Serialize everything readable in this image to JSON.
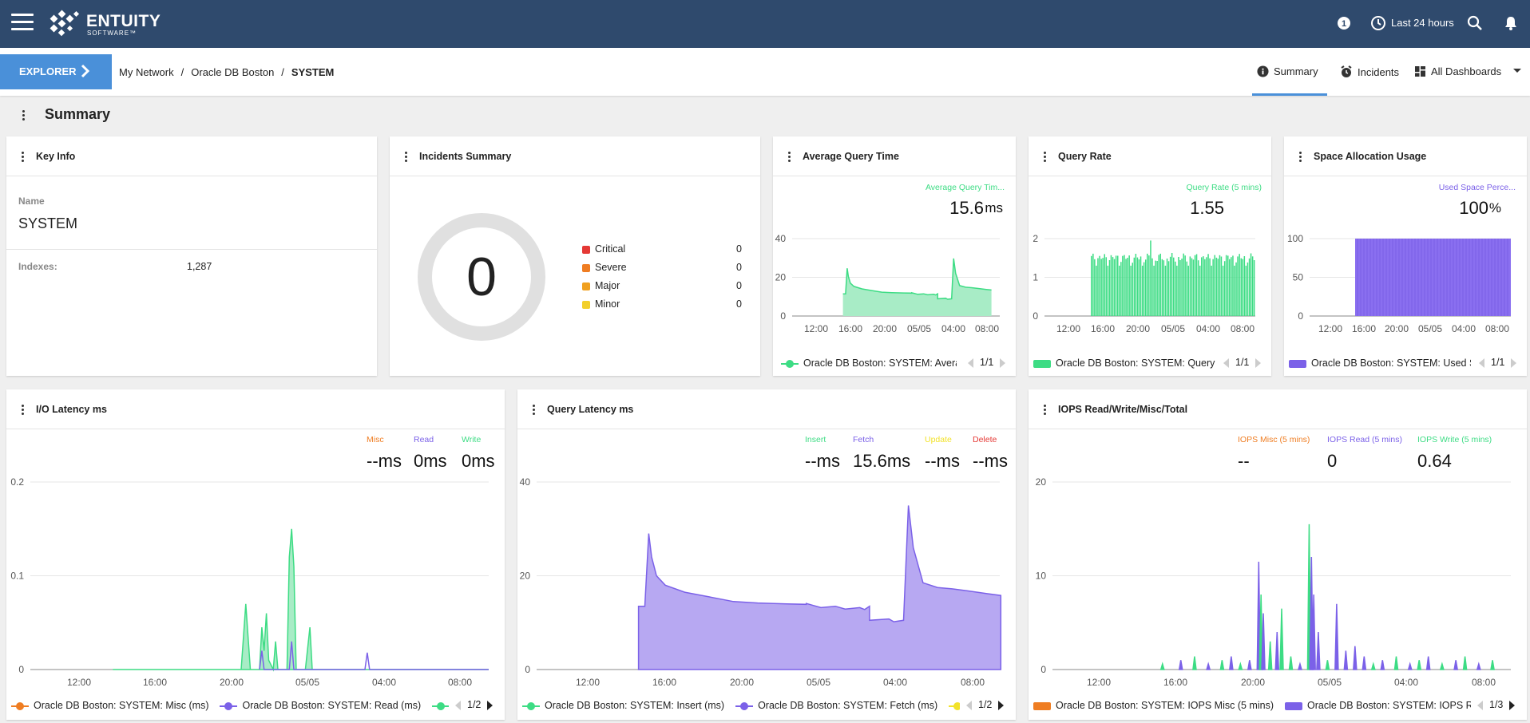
{
  "app": {
    "brand": "ENTUITY",
    "brand_sub": "SOFTWARE™",
    "time_range": "Last 24 hours"
  },
  "nav": {
    "explorer_label": "EXPLORER",
    "breadcrumb": [
      "My Network",
      "Oracle DB Boston",
      "SYSTEM"
    ],
    "tabs": [
      {
        "label": "Summary",
        "active": true
      },
      {
        "label": "Incidents"
      },
      {
        "label": "All Dashboards"
      }
    ]
  },
  "page": {
    "title": "Summary"
  },
  "key_info": {
    "title": "Key Info",
    "name_label": "Name",
    "name_value": "SYSTEM",
    "indexes_label": "Indexes:",
    "indexes_value": "1,287"
  },
  "incidents": {
    "title": "Incidents Summary",
    "total": "0",
    "rows": [
      {
        "label": "Critical",
        "count": "0",
        "color": "#e53935"
      },
      {
        "label": "Severe",
        "count": "0",
        "color": "#ef7d22"
      },
      {
        "label": "Major",
        "count": "0",
        "color": "#f0a020"
      },
      {
        "label": "Minor",
        "count": "0",
        "color": "#f2cf2a"
      }
    ]
  },
  "avg_query": {
    "title": "Average Query Time",
    "metric_label": "Average Query Tim...",
    "metric_value": "15.6",
    "metric_unit": "ms",
    "legend": "Oracle DB Boston: SYSTEM: Averag",
    "pager": "1/1",
    "ticks_y": [
      "40",
      "20",
      "0"
    ],
    "ticks_x": [
      "12:00",
      "16:00",
      "20:00",
      "05/05",
      "04:00",
      "08:00"
    ]
  },
  "query_rate": {
    "title": "Query Rate",
    "metric_label": "Query Rate (5 mins)",
    "metric_value": "1.55",
    "legend": "Oracle DB Boston: SYSTEM: Query",
    "pager": "1/1",
    "ticks_y": [
      "2",
      "1",
      "0"
    ],
    "ticks_x": [
      "12:00",
      "16:00",
      "20:00",
      "05/05",
      "04:00",
      "08:00"
    ]
  },
  "space_alloc": {
    "title": "Space Allocation Usage",
    "metric_label": "Used Space Perce...",
    "metric_value": "100",
    "metric_unit": "%",
    "legend": "Oracle DB Boston: SYSTEM: Used S",
    "pager": "1/1",
    "ticks_y": [
      "100",
      "50",
      "0"
    ],
    "ticks_x": [
      "12:00",
      "16:00",
      "20:00",
      "05/05",
      "04:00",
      "08:00"
    ]
  },
  "io_latency": {
    "title": "I/O Latency ms",
    "metrics": [
      {
        "label": "Misc",
        "value": "--ms",
        "color": "#ef7d22"
      },
      {
        "label": "Read",
        "value": "0ms",
        "color": "#7b61e8"
      },
      {
        "label": "Write",
        "value": "0ms",
        "color": "#3ddc84"
      }
    ],
    "legend": [
      "Oracle DB Boston: SYSTEM: Misc (ms)",
      "Oracle DB Boston: SYSTEM: Read (ms)"
    ],
    "pager": "1/2",
    "ticks_y": [
      "0.2",
      "0.1",
      "0"
    ],
    "ticks_x": [
      "12:00",
      "16:00",
      "20:00",
      "05/05",
      "04:00",
      "08:00"
    ]
  },
  "query_latency": {
    "title": "Query Latency ms",
    "metrics": [
      {
        "label": "Insert",
        "value": "--ms",
        "color": "#3ddc84"
      },
      {
        "label": "Fetch",
        "value": "15.6ms",
        "color": "#7b61e8"
      },
      {
        "label": "Update",
        "value": "--ms",
        "color": "#f2e22a"
      },
      {
        "label": "Delete",
        "value": "--ms",
        "color": "#e53935"
      }
    ],
    "legend": [
      "Oracle DB Boston: SYSTEM: Insert (ms)",
      "Oracle DB Boston: SYSTEM: Fetch (ms)"
    ],
    "pager": "1/2",
    "ticks_y": [
      "40",
      "20",
      "0"
    ],
    "ticks_x": [
      "12:00",
      "16:00",
      "20:00",
      "05/05",
      "04:00",
      "08:00"
    ]
  },
  "iops": {
    "title": "IOPS Read/Write/Misc/Total",
    "metrics": [
      {
        "label": "IOPS Misc (5 mins)",
        "value": "--",
        "color": "#ef7d22"
      },
      {
        "label": "IOPS Read (5 mins)",
        "value": "0",
        "color": "#7b61e8"
      },
      {
        "label": "IOPS Write (5 mins)",
        "value": "0.64",
        "color": "#3ddc84"
      }
    ],
    "legend": [
      "Oracle DB Boston: SYSTEM: IOPS Misc (5 mins)",
      "Oracle DB Boston: SYSTEM: IOPS Rea"
    ],
    "pager": "1/3",
    "ticks_y": [
      "20",
      "10",
      "0"
    ],
    "ticks_x": [
      "12:00",
      "16:00",
      "20:00",
      "05/05",
      "04:00",
      "08:00"
    ]
  },
  "colors": {
    "green": "#3ddc84",
    "green_fill": "#a8ecc6",
    "purple": "#7b61e8",
    "purple_fill": "#b7a8f2",
    "orange": "#ef7d22",
    "header": "#2f4a6d",
    "accent": "#4a90d9"
  }
}
